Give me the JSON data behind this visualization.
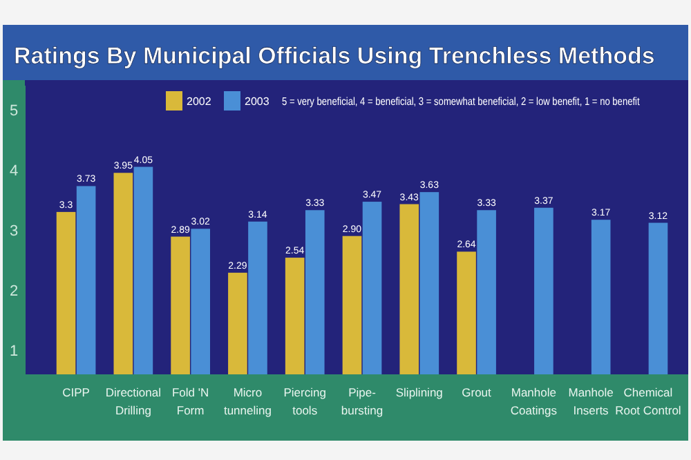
{
  "chart_data": {
    "type": "bar",
    "title": "Ratings By Municipal Officials Using Trenchless Methods",
    "categories": [
      "CIPP",
      "Directional Drilling",
      "Fold 'N Form",
      "Micro tunneling",
      "Piercing tools",
      "Pipe-bursting",
      "Sliplining",
      "Grout",
      "Manhole Coatings",
      "Manhole Inserts",
      "Chemical Root Control"
    ],
    "series": [
      {
        "name": "2002",
        "color": "#d9b93a",
        "values": [
          3.3,
          3.95,
          2.89,
          2.29,
          2.54,
          2.9,
          3.43,
          2.64,
          null,
          null,
          null
        ],
        "value_labels": [
          "3.3",
          "3.95",
          "2.89",
          "2.29",
          "2.54",
          "2.90",
          "3.43",
          "2.64",
          null,
          null,
          null
        ]
      },
      {
        "name": "2003",
        "color": "#4a8fd6",
        "values": [
          3.73,
          4.05,
          3.02,
          3.14,
          3.33,
          3.47,
          3.63,
          3.33,
          3.37,
          3.17,
          3.12
        ],
        "value_labels": [
          "3.73",
          "4.05",
          "3.02",
          "3.14",
          "3.33",
          "3.47",
          "3.63",
          "3.33",
          "3.37",
          "3.17",
          "3.12"
        ]
      }
    ],
    "ylim": [
      0.6,
      5.4
    ],
    "yticks": [
      1,
      2,
      3,
      4,
      5
    ],
    "grid": false,
    "legend": "top",
    "annotations": [
      "5 = very beneficial, 4 = beneficial, 3 = somewhat beneficial, 2 = low benefit, 1 = no benefit"
    ]
  }
}
